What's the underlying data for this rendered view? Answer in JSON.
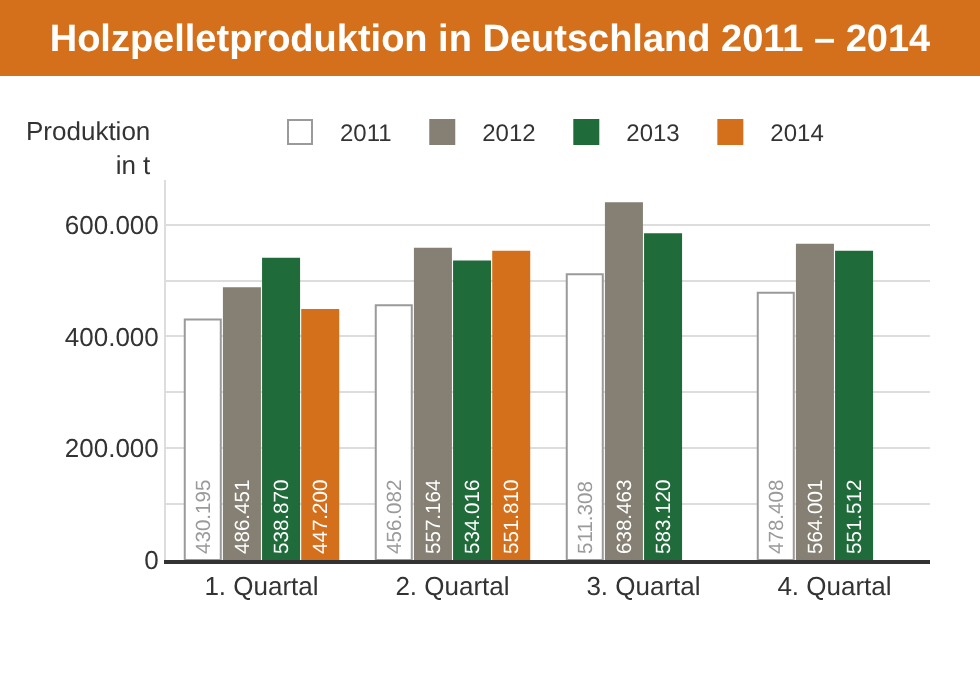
{
  "chart_data": {
    "type": "bar",
    "title": "Holzpelletproduktion in Deutschland 2011 – 2014",
    "ylabel": "Produktion\nin t",
    "categories": [
      "1. Quartal",
      "2. Quartal",
      "3. Quartal",
      "4. Quartal"
    ],
    "series": [
      {
        "name": "2011",
        "color": "#ffffff",
        "values": [
          430195,
          456082,
          511308,
          478408
        ],
        "value_labels": [
          "430.195",
          "456.082",
          "511.308",
          "478.408"
        ]
      },
      {
        "name": "2012",
        "color": "#858073",
        "values": [
          486451,
          557164,
          638463,
          564001
        ],
        "value_labels": [
          "486.451",
          "557.164",
          "638.463",
          "564.001"
        ]
      },
      {
        "name": "2013",
        "color": "#1f6b3a",
        "values": [
          538870,
          534016,
          583120,
          551512
        ],
        "value_labels": [
          "538.870",
          "534.016",
          "583.120",
          "551.512"
        ]
      },
      {
        "name": "2014",
        "color": "#d4701c",
        "values": [
          447200,
          551810,
          null,
          null
        ],
        "value_labels": [
          "447.200",
          "551.810",
          null,
          null
        ]
      }
    ],
    "ylim": [
      0,
      680000
    ],
    "yticks": [
      {
        "value": 0,
        "label": "0"
      },
      {
        "value": 100000,
        "label": null
      },
      {
        "value": 200000,
        "label": "200.000"
      },
      {
        "value": 300000,
        "label": null
      },
      {
        "value": 400000,
        "label": "400.000"
      },
      {
        "value": 500000,
        "label": null
      },
      {
        "value": 600000,
        "label": "600.000"
      }
    ],
    "grid": "y",
    "legend": "top"
  }
}
